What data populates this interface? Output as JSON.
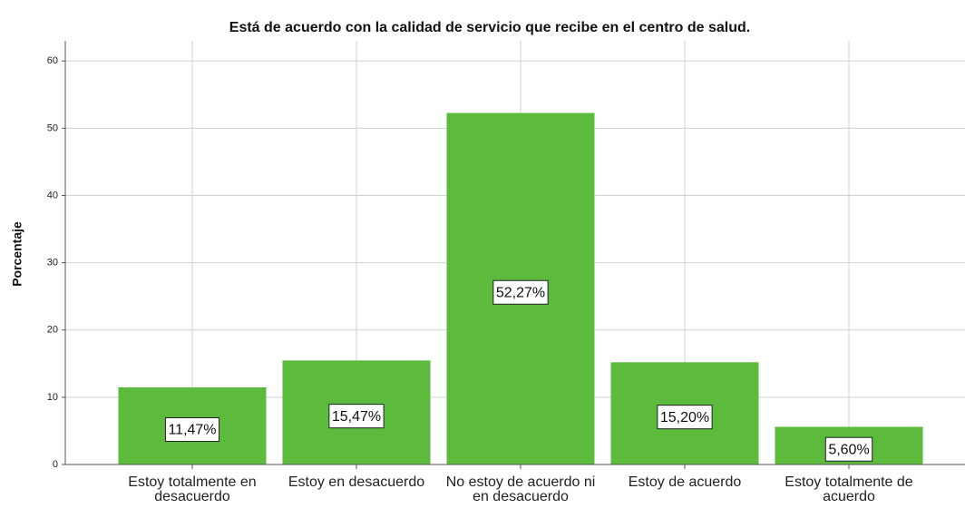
{
  "chart_data": {
    "type": "bar",
    "title": "Está de acuerdo con la calidad de servicio que recibe en el centro de salud.",
    "y_label": "Porcentaje",
    "categories": [
      "Estoy totalmente en desacuerdo",
      "Estoy en desacuerdo",
      "No estoy de acuerdo ni en desacuerdo",
      "Estoy de acuerdo",
      "Estoy totalmente de acuerdo"
    ],
    "values": [
      11.47,
      15.47,
      52.27,
      15.2,
      5.6
    ],
    "value_labels": [
      "11,47%",
      "15,47%",
      "52,27%",
      "15,20%",
      "5,60%"
    ],
    "color": "#5cba3c",
    "ylim": [
      0,
      63
    ],
    "yticks": [
      0,
      10,
      20,
      30,
      40,
      50,
      60
    ],
    "grid": true
  }
}
